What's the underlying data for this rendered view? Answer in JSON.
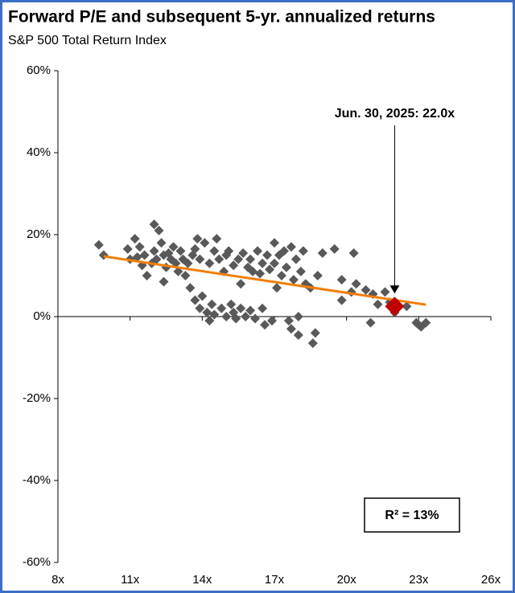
{
  "chart_data": {
    "type": "scatter",
    "title": "Forward P/E and subsequent 5-yr. annualized returns",
    "subtitle": "S&P 500 Total Return Index",
    "color": "#595959",
    "x": [
      9.7,
      9.9,
      10.9,
      11.2,
      11.4,
      11.0,
      11.3,
      11.6,
      11.5,
      11.7,
      11.9,
      12.0,
      12.2,
      12.0,
      12.1,
      12.3,
      12.4,
      12.5,
      12.6,
      12.7,
      12.4,
      12.8,
      12.9,
      13.0,
      13.1,
      13.2,
      13.3,
      13.4,
      13.5,
      13.6,
      13.7,
      13.8,
      13.9,
      13.7,
      13.9,
      14.0,
      14.1,
      14.2,
      14.3,
      14.3,
      14.4,
      14.5,
      14.5,
      14.6,
      14.7,
      14.8,
      14.9,
      15.0,
      15.0,
      15.1,
      15.2,
      15.3,
      15.3,
      15.4,
      15.5,
      15.6,
      15.6,
      15.7,
      15.8,
      15.9,
      16.0,
      16.0,
      16.1,
      16.2,
      16.3,
      16.4,
      16.5,
      16.5,
      16.6,
      16.7,
      16.8,
      16.9,
      17.0,
      17.0,
      17.1,
      17.2,
      17.3,
      17.4,
      17.5,
      17.6,
      17.7,
      17.7,
      17.8,
      17.9,
      18.0,
      18.0,
      18.1,
      18.2,
      18.3,
      18.5,
      18.6,
      18.7,
      18.8,
      19.0,
      19.5,
      19.8,
      19.8,
      20.2,
      20.3,
      20.4,
      20.8,
      21.0,
      21.1,
      21.3,
      21.6,
      21.8,
      22.0,
      22.5,
      22.9,
      23.1,
      23.3,
      23.0
    ],
    "values": [
      17.5,
      15,
      16.5,
      19,
      17,
      14,
      14.5,
      15,
      12.5,
      10,
      13,
      22.5,
      21,
      16,
      14,
      18,
      15,
      12,
      15.5,
      14,
      8.5,
      17,
      13,
      11,
      16,
      14,
      10,
      13,
      7,
      15,
      16.5,
      19,
      14,
      4,
      2,
      5,
      18,
      1,
      -1,
      13,
      3,
      16,
      0.5,
      19,
      14,
      2,
      11,
      0,
      15,
      16,
      3,
      1,
      12.5,
      -0.5,
      14,
      2,
      8,
      15.5,
      0,
      12,
      1.5,
      14,
      11,
      -0.5,
      16,
      10.5,
      13,
      2,
      -2,
      15,
      11.5,
      -1,
      18,
      13,
      7,
      15,
      10,
      16,
      12,
      -1,
      17,
      -3,
      9,
      14,
      0,
      -4.5,
      11,
      16,
      8,
      7,
      -6.5,
      -4,
      10,
      15.5,
      16.5,
      9,
      4,
      6,
      15.5,
      8,
      6.5,
      -1.5,
      5.5,
      3,
      6,
      3.5,
      1,
      2.5,
      -1.5,
      -2.5,
      -1.5,
      -2
    ],
    "trendline": {
      "x": [
        9.9,
        23.3
      ],
      "values": [
        14.7,
        2.9
      ],
      "color": "#f07f09"
    },
    "highlight": {
      "x": 22.0,
      "value": 2.5,
      "color": "#c00000",
      "label": "Jun. 30, 2025: 22.0x"
    },
    "r_squared_label": "R²  = 13%",
    "xlim": [
      8,
      26
    ],
    "xticks": [
      {
        "value": 8,
        "label": "8x"
      },
      {
        "value": 11,
        "label": "11x"
      },
      {
        "value": 14,
        "label": "14x"
      },
      {
        "value": 17,
        "label": "17x"
      },
      {
        "value": 20,
        "label": "20x"
      },
      {
        "value": 23,
        "label": "23x"
      },
      {
        "value": 26,
        "label": "26x"
      }
    ],
    "ylim": [
      -60,
      60
    ],
    "yticks": [
      {
        "value": -60,
        "label": "-60%"
      },
      {
        "value": -40,
        "label": "-40%"
      },
      {
        "value": -20,
        "label": "-20%"
      },
      {
        "value": 0,
        "label": "0%"
      },
      {
        "value": 20,
        "label": "20%"
      },
      {
        "value": 40,
        "label": "40%"
      },
      {
        "value": 60,
        "label": "60%"
      }
    ]
  }
}
